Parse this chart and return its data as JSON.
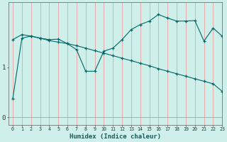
{
  "xlabel": "Humidex (Indice chaleur)",
  "bg_color": "#cff0ea",
  "line_color": "#006868",
  "vgrid_color": "#e8a0a0",
  "xmin": -0.5,
  "xmax": 23,
  "ymin": -0.15,
  "ymax": 2.3,
  "yticks": [
    0,
    1
  ],
  "ytick_labels": [
    "0",
    "1"
  ],
  "xticks": [
    0,
    1,
    2,
    3,
    4,
    5,
    6,
    7,
    8,
    9,
    10,
    11,
    12,
    13,
    14,
    15,
    16,
    17,
    18,
    19,
    20,
    21,
    22,
    23
  ],
  "line1_x": [
    0,
    1,
    2,
    3,
    4,
    5,
    6,
    7,
    8,
    9,
    10,
    11,
    12,
    13,
    14,
    15,
    16,
    17,
    18,
    19,
    20,
    21,
    22,
    23
  ],
  "line1_y": [
    0.38,
    1.58,
    1.62,
    1.58,
    1.55,
    1.56,
    1.47,
    1.35,
    0.92,
    0.92,
    1.32,
    1.38,
    1.55,
    1.75,
    1.85,
    1.92,
    2.05,
    1.98,
    1.92,
    1.92,
    1.93,
    1.52,
    1.78,
    1.62
  ],
  "line2_x": [
    0,
    1,
    2,
    3,
    4,
    5,
    6,
    7,
    8,
    9,
    10,
    11,
    12,
    13,
    14,
    15,
    16,
    17,
    18,
    19,
    20,
    21,
    22,
    23
  ],
  "line2_y": [
    1.55,
    1.65,
    1.62,
    1.58,
    1.53,
    1.5,
    1.47,
    1.43,
    1.38,
    1.33,
    1.28,
    1.23,
    1.18,
    1.13,
    1.08,
    1.03,
    0.97,
    0.92,
    0.87,
    0.82,
    0.77,
    0.72,
    0.67,
    0.52
  ]
}
